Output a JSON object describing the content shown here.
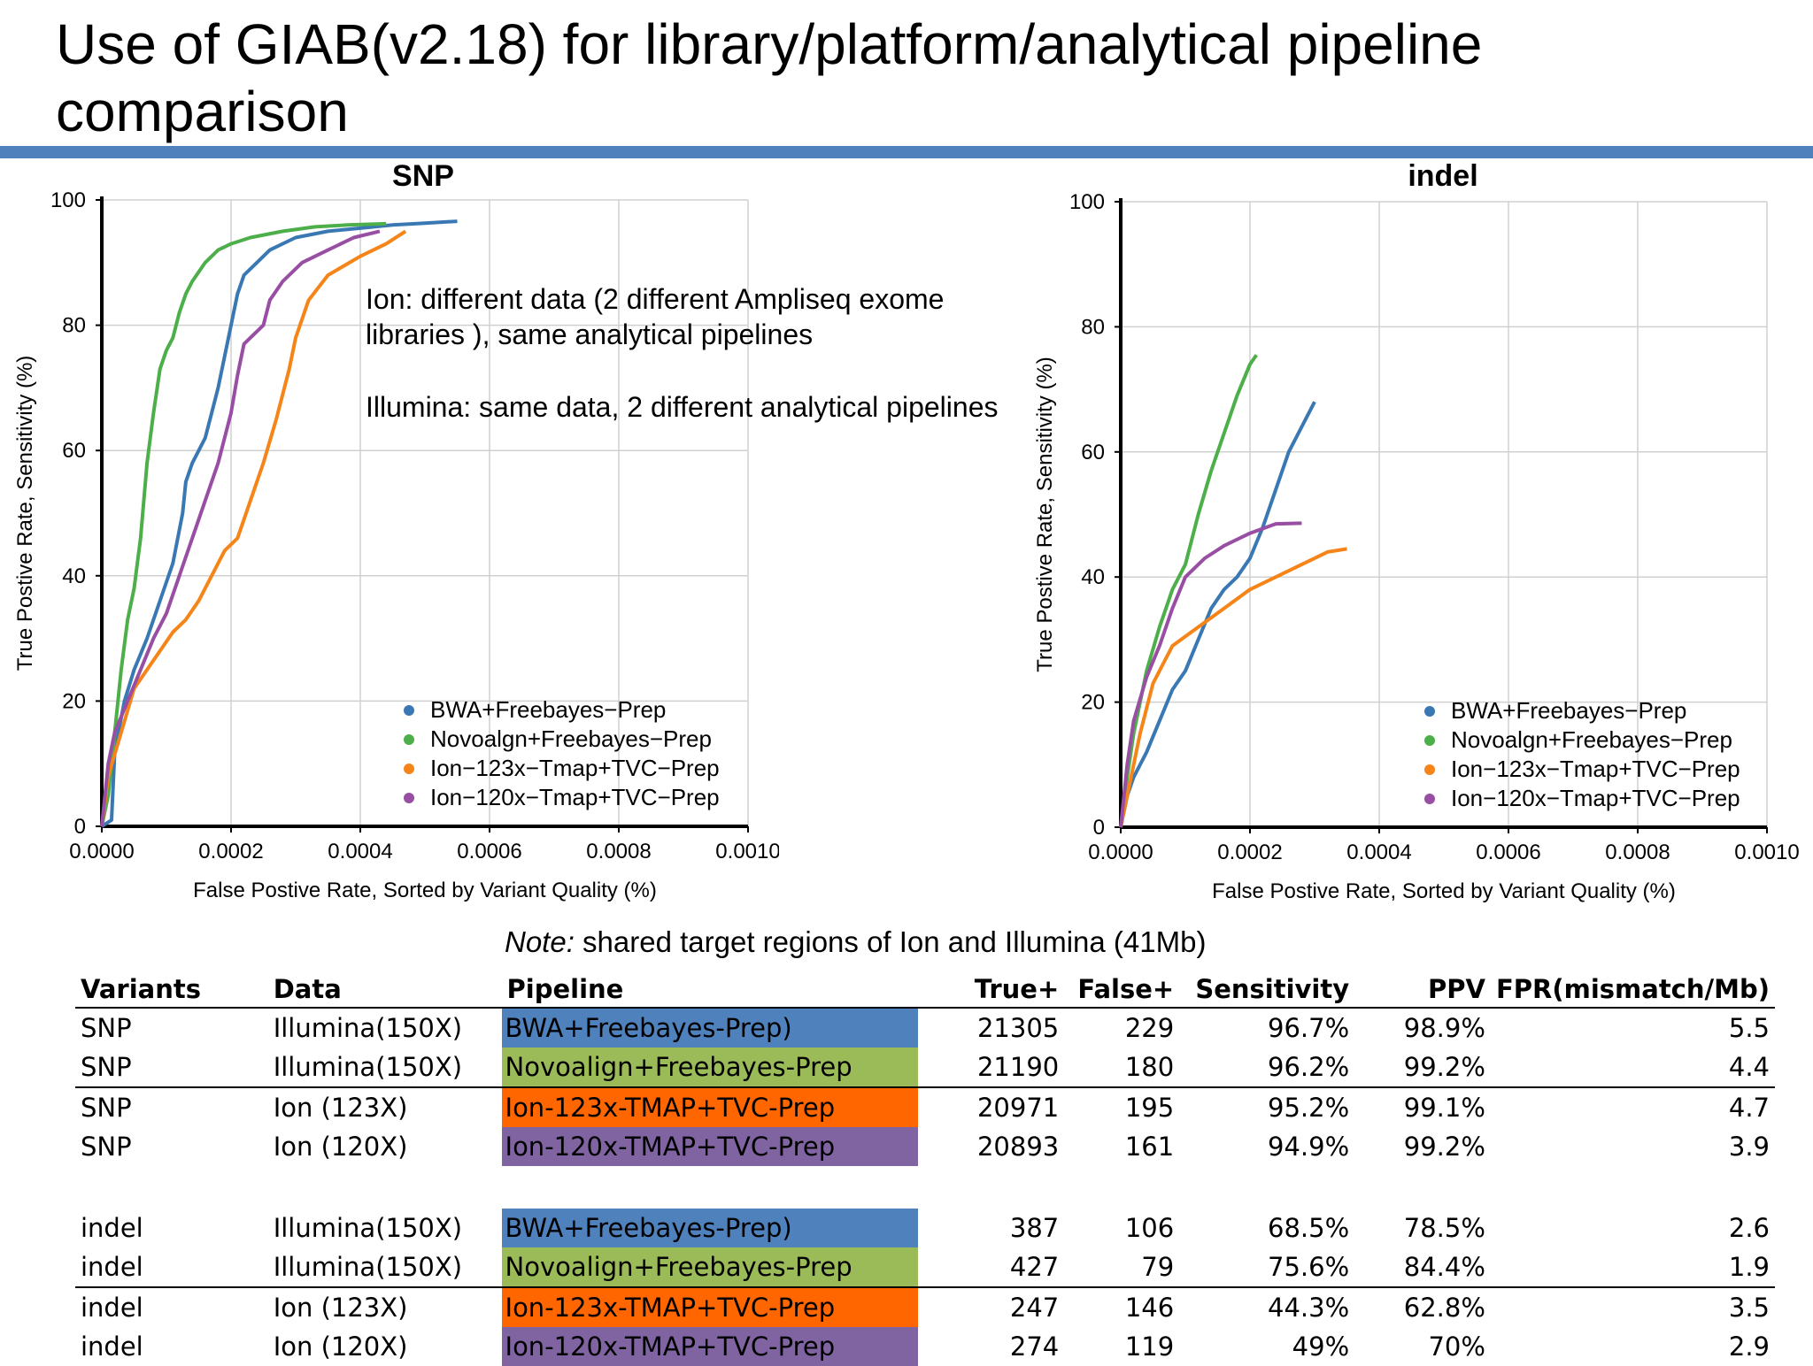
{
  "title": "Use of GIAB(v2.18) for library/platform/analytical pipeline comparison",
  "colors": {
    "accent": "#4f81bd",
    "blue": "#3a78b4",
    "green": "#4daf4a",
    "orange": "#f58518",
    "purple": "#984ea3"
  },
  "annotation": {
    "line1": "Ion: different data (2 different Ampliseq exome",
    "line2": "libraries ), same analytical pipelines",
    "line3": "Illumina: same data, 2 different analytical pipelines"
  },
  "note": {
    "label": "Note:",
    "text": " shared target regions of Ion and Illumina (41Mb)"
  },
  "chart_data": [
    {
      "type": "line",
      "title": "SNP",
      "xlabel": "False Postive Rate, Sorted by Variant Quality (%)",
      "ylabel": "True Postive Rate, Sensitivity (%)",
      "xlim": [
        0,
        0.001
      ],
      "ylim": [
        0,
        100
      ],
      "x_ticks": [
        "0.0000",
        "0.0002",
        "0.0004",
        "0.0006",
        "0.0008",
        "0.0010"
      ],
      "y_ticks": [
        "0",
        "20",
        "40",
        "60",
        "80",
        "100"
      ],
      "legend_position": "bottom-right",
      "series": [
        {
          "name": "BWA+Freebayes−Prep",
          "color": "#3a78b4",
          "points": [
            [
              0,
              0
            ],
            [
              1.5e-05,
              1
            ],
            [
              2e-05,
              12
            ],
            [
              3.5e-05,
              20
            ],
            [
              5e-05,
              25
            ],
            [
              7e-05,
              30
            ],
            [
              9e-05,
              36
            ],
            [
              0.00011,
              42
            ],
            [
              0.000125,
              50
            ],
            [
              0.00013,
              55
            ],
            [
              0.00014,
              58
            ],
            [
              0.00016,
              62
            ],
            [
              0.00017,
              66
            ],
            [
              0.00018,
              70
            ],
            [
              0.00019,
              75
            ],
            [
              0.0002,
              80
            ],
            [
              0.00021,
              85
            ],
            [
              0.00022,
              88
            ],
            [
              0.00024,
              90
            ],
            [
              0.00026,
              92
            ],
            [
              0.0003,
              94
            ],
            [
              0.00035,
              95
            ],
            [
              0.0004,
              95.5
            ],
            [
              0.00045,
              96
            ],
            [
              0.0005,
              96.3
            ],
            [
              0.00055,
              96.6
            ]
          ]
        },
        {
          "name": "Novoalgn+Freebayes−Prep",
          "color": "#4daf4a",
          "points": [
            [
              0,
              0
            ],
            [
              1e-05,
              5
            ],
            [
              2e-05,
              15
            ],
            [
              3e-05,
              25
            ],
            [
              4e-05,
              33
            ],
            [
              5e-05,
              38
            ],
            [
              6e-05,
              46
            ],
            [
              7e-05,
              58
            ],
            [
              8e-05,
              66
            ],
            [
              9e-05,
              73
            ],
            [
              0.0001,
              76
            ],
            [
              0.00011,
              78
            ],
            [
              0.00012,
              82
            ],
            [
              0.00013,
              85
            ],
            [
              0.00014,
              87
            ],
            [
              0.00016,
              90
            ],
            [
              0.00018,
              92
            ],
            [
              0.0002,
              93
            ],
            [
              0.00023,
              94
            ],
            [
              0.00028,
              95
            ],
            [
              0.00033,
              95.7
            ],
            [
              0.00038,
              96
            ],
            [
              0.00044,
              96.2
            ]
          ]
        },
        {
          "name": "Ion−123x−Tmap+TVC−Prep",
          "color": "#f58518",
          "points": [
            [
              0,
              0
            ],
            [
              1e-05,
              8
            ],
            [
              3e-05,
              15
            ],
            [
              5e-05,
              22
            ],
            [
              7e-05,
              25
            ],
            [
              9e-05,
              28
            ],
            [
              0.00011,
              31
            ],
            [
              0.00013,
              33
            ],
            [
              0.00015,
              36
            ],
            [
              0.00017,
              40
            ],
            [
              0.00019,
              44
            ],
            [
              0.00021,
              46
            ],
            [
              0.00023,
              52
            ],
            [
              0.00025,
              58
            ],
            [
              0.00027,
              65
            ],
            [
              0.00029,
              73
            ],
            [
              0.0003,
              78
            ],
            [
              0.00032,
              84
            ],
            [
              0.00035,
              88
            ],
            [
              0.0004,
              91
            ],
            [
              0.00044,
              93
            ],
            [
              0.00047,
              95
            ]
          ]
        },
        {
          "name": "Ion−120x−Tmap+TVC−Prep",
          "color": "#984ea3",
          "points": [
            [
              0,
              0
            ],
            [
              1e-05,
              10
            ],
            [
              2e-05,
              15
            ],
            [
              4e-05,
              20
            ],
            [
              6e-05,
              25
            ],
            [
              8e-05,
              30
            ],
            [
              0.0001,
              34
            ],
            [
              0.00012,
              40
            ],
            [
              0.00014,
              46
            ],
            [
              0.00016,
              52
            ],
            [
              0.00018,
              58
            ],
            [
              0.0002,
              66
            ],
            [
              0.00021,
              72
            ],
            [
              0.00022,
              77
            ],
            [
              0.00025,
              80
            ],
            [
              0.00026,
              84
            ],
            [
              0.00028,
              87
            ],
            [
              0.00031,
              90
            ],
            [
              0.00035,
              92
            ],
            [
              0.00039,
              94
            ],
            [
              0.00043,
              95
            ]
          ]
        }
      ]
    },
    {
      "type": "line",
      "title": "indel",
      "xlabel": "False Postive Rate, Sorted by Variant Quality (%)",
      "ylabel": "True Postive Rate, Sensitivity (%)",
      "xlim": [
        0,
        0.001
      ],
      "ylim": [
        0,
        100
      ],
      "x_ticks": [
        "0.0000",
        "0.0002",
        "0.0004",
        "0.0006",
        "0.0008",
        "0.0010"
      ],
      "y_ticks": [
        "0",
        "20",
        "40",
        "60",
        "80",
        "100"
      ],
      "legend_position": "bottom-right",
      "series": [
        {
          "name": "BWA+Freebayes−Prep",
          "color": "#3a78b4",
          "points": [
            [
              0,
              0
            ],
            [
              1e-05,
              5
            ],
            [
              2e-05,
              8
            ],
            [
              4e-05,
              12
            ],
            [
              6e-05,
              17
            ],
            [
              8e-05,
              22
            ],
            [
              0.0001,
              25
            ],
            [
              0.00012,
              30
            ],
            [
              0.00014,
              35
            ],
            [
              0.00016,
              38
            ],
            [
              0.00018,
              40
            ],
            [
              0.0002,
              43
            ],
            [
              0.00022,
              48
            ],
            [
              0.00024,
              54
            ],
            [
              0.00026,
              60
            ],
            [
              0.00028,
              64
            ],
            [
              0.0003,
              68
            ]
          ]
        },
        {
          "name": "Novoalgn+Freebayes−Prep",
          "color": "#4daf4a",
          "points": [
            [
              0,
              0
            ],
            [
              1e-05,
              8
            ],
            [
              2e-05,
              15
            ],
            [
              4e-05,
              25
            ],
            [
              6e-05,
              32
            ],
            [
              8e-05,
              38
            ],
            [
              0.0001,
              42
            ],
            [
              0.00012,
              50
            ],
            [
              0.00014,
              57
            ],
            [
              0.00016,
              63
            ],
            [
              0.00018,
              69
            ],
            [
              0.0002,
              74
            ],
            [
              0.00021,
              75.5
            ]
          ]
        },
        {
          "name": "Ion−123x−Tmap+TVC−Prep",
          "color": "#f58518",
          "points": [
            [
              0,
              0
            ],
            [
              1e-05,
              5
            ],
            [
              3e-05,
              15
            ],
            [
              5e-05,
              23
            ],
            [
              8e-05,
              29
            ],
            [
              0.00012,
              32
            ],
            [
              0.00016,
              35
            ],
            [
              0.0002,
              38
            ],
            [
              0.00024,
              40
            ],
            [
              0.00028,
              42
            ],
            [
              0.00032,
              44
            ],
            [
              0.00035,
              44.5
            ]
          ]
        },
        {
          "name": "Ion−120x−Tmap+TVC−Prep",
          "color": "#984ea3",
          "points": [
            [
              0,
              0
            ],
            [
              1e-05,
              10
            ],
            [
              2e-05,
              17
            ],
            [
              4e-05,
              24
            ],
            [
              6e-05,
              29
            ],
            [
              8e-05,
              35
            ],
            [
              0.0001,
              40
            ],
            [
              0.00013,
              43
            ],
            [
              0.00016,
              45
            ],
            [
              0.0002,
              47
            ],
            [
              0.00024,
              48.5
            ],
            [
              0.00028,
              48.6
            ]
          ]
        }
      ]
    }
  ],
  "table": {
    "headers": {
      "variants": "Variants",
      "data": "Data",
      "pipeline": "Pipeline",
      "truepos": "True+",
      "falsepos": "False+",
      "sensitivity": "Sensitivity",
      "ppv": "PPV",
      "fpr": "FPR(mismatch/Mb)"
    },
    "rows": [
      {
        "variants": "SNP",
        "data": "Illumina(150X)",
        "pipeline": "BWA+Freebayes-Prep)",
        "pipeline_color": "#4f81bd",
        "truepos": "21305",
        "falsepos": "229",
        "sensitivity": "96.7%",
        "ppv": "98.9%",
        "fpr": "5.5"
      },
      {
        "variants": "SNP",
        "data": "Illumina(150X)",
        "pipeline": "Novoalign+Freebayes-Prep",
        "pipeline_color": "#9bbb59",
        "truepos": "21190",
        "falsepos": "180",
        "sensitivity": "96.2%",
        "ppv": "99.2%",
        "fpr": "4.4"
      },
      {
        "variants": "SNP",
        "data": "Ion (123X)",
        "pipeline": "Ion-123x-TMAP+TVC-Prep",
        "pipeline_color": "#ff6600",
        "truepos": "20971",
        "falsepos": "195",
        "sensitivity": "95.2%",
        "ppv": "99.1%",
        "fpr": "4.7"
      },
      {
        "variants": "SNP",
        "data": "Ion (120X)",
        "pipeline": "Ion-120x-TMAP+TVC-Prep",
        "pipeline_color": "#8064a2",
        "truepos": "20893",
        "falsepos": "161",
        "sensitivity": "94.9%",
        "ppv": "99.2%",
        "fpr": "3.9"
      },
      {
        "variants": "indel",
        "data": "Illumina(150X)",
        "pipeline": "BWA+Freebayes-Prep)",
        "pipeline_color": "#4f81bd",
        "truepos": "387",
        "falsepos": "106",
        "sensitivity": "68.5%",
        "ppv": "78.5%",
        "fpr": "2.6"
      },
      {
        "variants": "indel",
        "data": "Illumina(150X)",
        "pipeline": "Novoalign+Freebayes-Prep",
        "pipeline_color": "#9bbb59",
        "truepos": "427",
        "falsepos": "79",
        "sensitivity": "75.6%",
        "ppv": "84.4%",
        "fpr": "1.9"
      },
      {
        "variants": "indel",
        "data": "Ion (123X)",
        "pipeline": "Ion-123x-TMAP+TVC-Prep",
        "pipeline_color": "#ff6600",
        "truepos": "247",
        "falsepos": "146",
        "sensitivity": "44.3%",
        "ppv": "62.8%",
        "fpr": "3.5"
      },
      {
        "variants": "indel",
        "data": "Ion (120X)",
        "pipeline": "Ion-120x-TMAP+TVC-Prep",
        "pipeline_color": "#8064a2",
        "truepos": "274",
        "falsepos": "119",
        "sensitivity": "49%",
        "ppv": "70%",
        "fpr": "2.9"
      }
    ]
  }
}
